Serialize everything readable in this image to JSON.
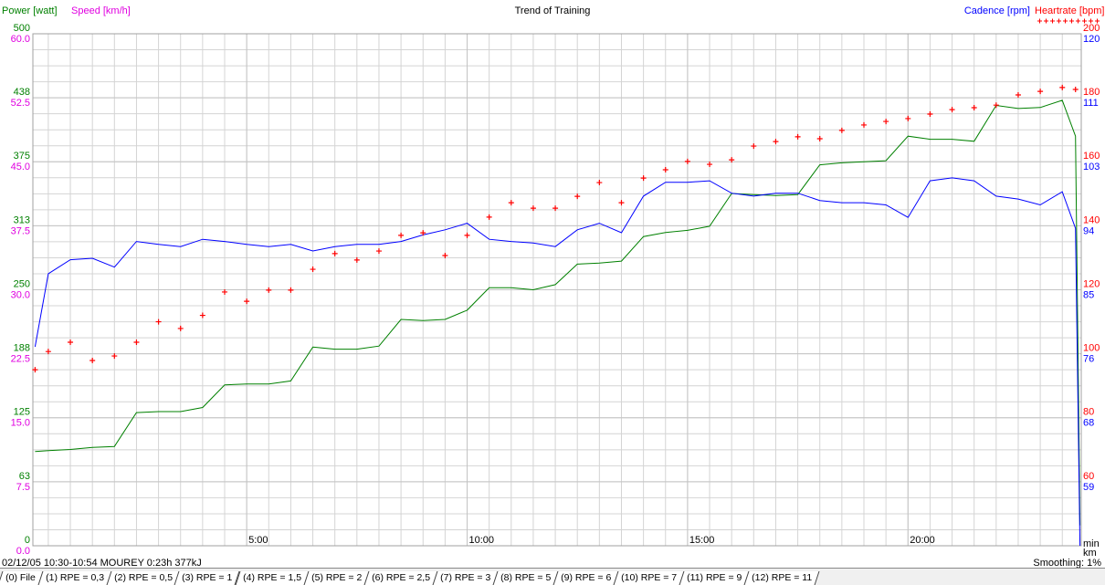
{
  "chart_data": {
    "type": "line",
    "title": "Trend of Training",
    "ylabel": "Power [watt]",
    "ycolor": "#008000",
    "ylim": [
      0,
      500
    ],
    "yticks": [
      0,
      {
        "value": 62.5,
        "label": "63"
      },
      125,
      {
        "value": 187.5,
        "label": "188"
      },
      250,
      {
        "value": 312.5,
        "label": "313"
      },
      375,
      {
        "value": 437.5,
        "label": "438"
      },
      500
    ],
    "y2label": "Speed [km/h]",
    "y2color": "#e000e0",
    "y2lim": [
      0,
      60
    ],
    "y2ticks": [
      {
        "value": 0,
        "label": "0.0"
      },
      7.5,
      {
        "value": 15,
        "label": "15.0"
      },
      22.5,
      {
        "value": 30,
        "label": "30.0"
      },
      37.5,
      {
        "value": 45,
        "label": "45.0"
      },
      52.5,
      {
        "value": 60,
        "label": "60.0"
      }
    ],
    "y3label": "Cadence [rpm]",
    "y3color": "#0000ff",
    "y3lim": [
      50,
      120
    ],
    "y3ticks": [
      {
        "value": 58.75,
        "label": "59"
      },
      {
        "value": 67.5,
        "label": "68"
      },
      {
        "value": 76.25,
        "label": "76"
      },
      85,
      {
        "value": 93.75,
        "label": "94"
      },
      {
        "value": 102.5,
        "label": "103"
      },
      {
        "value": 111.25,
        "label": "111"
      },
      120
    ],
    "y4label": "Heartrate [bpm]",
    "y4color": "#ff0000",
    "y4lim": [
      40,
      200
    ],
    "y4ticks": [
      60,
      80,
      100,
      120,
      140,
      160,
      180,
      200
    ],
    "y_gridlines": [
      15.625,
      31.25,
      46.875,
      62.5,
      78.125,
      93.75,
      109.375,
      125,
      140.625,
      156.25,
      171.875,
      187.5,
      203.125,
      218.75,
      234.375,
      250,
      265.625,
      281.25,
      296.875,
      312.5,
      328.125,
      343.75,
      359.375,
      375,
      390.625,
      406.25,
      421.875,
      437.5,
      453.125,
      468.75,
      484.375
    ],
    "xlim": [
      0.15,
      23.93
    ],
    "xticks": [
      {
        "value": 5,
        "label": "5:00"
      },
      {
        "value": 10,
        "label": "10:00"
      },
      {
        "value": 15,
        "label": "15:00"
      },
      {
        "value": 20,
        "label": "20:00"
      }
    ],
    "x_gridlines": [
      0.5,
      1,
      1.5,
      2,
      2.5,
      3,
      3.5,
      4,
      4.5,
      5,
      5.5,
      6,
      6.5,
      7,
      7.5,
      8,
      8.5,
      9,
      9.5,
      10,
      10.5,
      11,
      11.5,
      12,
      12.5,
      13,
      13.5,
      14,
      14.5,
      15,
      15.5,
      16,
      16.5,
      17,
      17.5,
      18,
      18.5,
      19,
      19.5,
      20,
      20.5,
      21,
      21.5,
      22,
      22.5,
      23,
      23.5
    ],
    "x_unit_labels": [
      "min",
      "km"
    ],
    "grid": true,
    "x": [
      0.2,
      0.5,
      1,
      1.5,
      2,
      2.5,
      3,
      3.5,
      4,
      4.5,
      5,
      5.5,
      6,
      6.5,
      7,
      7.5,
      8,
      8.5,
      9,
      9.5,
      10,
      10.5,
      11,
      11.5,
      12,
      12.5,
      13,
      13.5,
      14,
      14.5,
      15,
      15.5,
      16,
      16.5,
      17,
      17.5,
      18,
      18.5,
      19,
      19.5,
      20,
      20.5,
      21,
      21.5,
      22,
      22.5,
      23,
      23.5,
      23.8,
      23.9
    ],
    "series": [
      {
        "axis": "y",
        "color": "#008000",
        "marker": "line",
        "values": [
          92,
          93,
          94,
          96,
          97,
          130,
          131,
          131,
          135,
          157,
          158,
          158,
          161,
          194,
          192,
          192,
          195,
          221,
          220,
          221,
          230,
          252,
          252,
          250,
          255,
          275,
          276,
          278,
          302,
          306,
          308,
          312,
          344,
          343,
          342,
          343,
          372,
          374,
          375,
          376,
          400,
          397,
          397,
          395,
          430,
          427,
          428,
          435,
          400,
          20
        ]
      },
      {
        "axis": "y3",
        "color": "#0000ff",
        "marker": "line",
        "values": [
          77.2,
          87.2,
          89.1,
          89.3,
          88.1,
          91.6,
          91.2,
          90.9,
          91.9,
          91.6,
          91.2,
          90.9,
          91.2,
          90.3,
          90.9,
          91.2,
          91.2,
          91.6,
          92.5,
          93.2,
          94.1,
          91.9,
          91.6,
          91.4,
          90.9,
          93.2,
          94.1,
          92.8,
          97.8,
          99.7,
          99.7,
          99.9,
          98.2,
          97.8,
          98.2,
          98.2,
          97.2,
          96.9,
          96.9,
          96.6,
          94.9,
          99.9,
          100.3,
          99.9,
          97.8,
          97.4,
          96.6,
          98.4,
          93.4,
          50
        ]
      },
      {
        "axis": "y4",
        "color": "#ff0000",
        "marker": "plus",
        "values": [
          95,
          100.7,
          103.6,
          97.9,
          99.3,
          103.6,
          110,
          107.9,
          112,
          119.3,
          116.4,
          119.9,
          119.9,
          126.4,
          131.3,
          129.3,
          132.1,
          137,
          137.8,
          130.7,
          137,
          142.7,
          147.2,
          145.5,
          145.5,
          149.2,
          153.5,
          147.2,
          154.9,
          157.5,
          160.1,
          159.2,
          160.6,
          164.9,
          166.3,
          167.8,
          167.2,
          169.8,
          171.5,
          172.6,
          173.5,
          174.9,
          176.3,
          176.9,
          177.7,
          180.9,
          182,
          183.2,
          182.6,
          null
        ]
      }
    ]
  },
  "footer": {
    "info": "02/12/05 10:30-10:54 MOUREY 0:23h 377kJ",
    "smoothing": "Smoothing: 1%"
  },
  "tabs": [
    "(0) File",
    "(1) RPE = 0,3",
    "(2) RPE = 0,5",
    "(3) RPE = 1",
    "(4) RPE = 1,5",
    "(5) RPE = 2",
    "(6) RPE = 2,5",
    "(7) RPE = 3",
    "(8) RPE = 5",
    "(9) RPE = 6",
    "(10) RPE = 7",
    "(11) RPE = 9",
    "(12) RPE = 11"
  ]
}
